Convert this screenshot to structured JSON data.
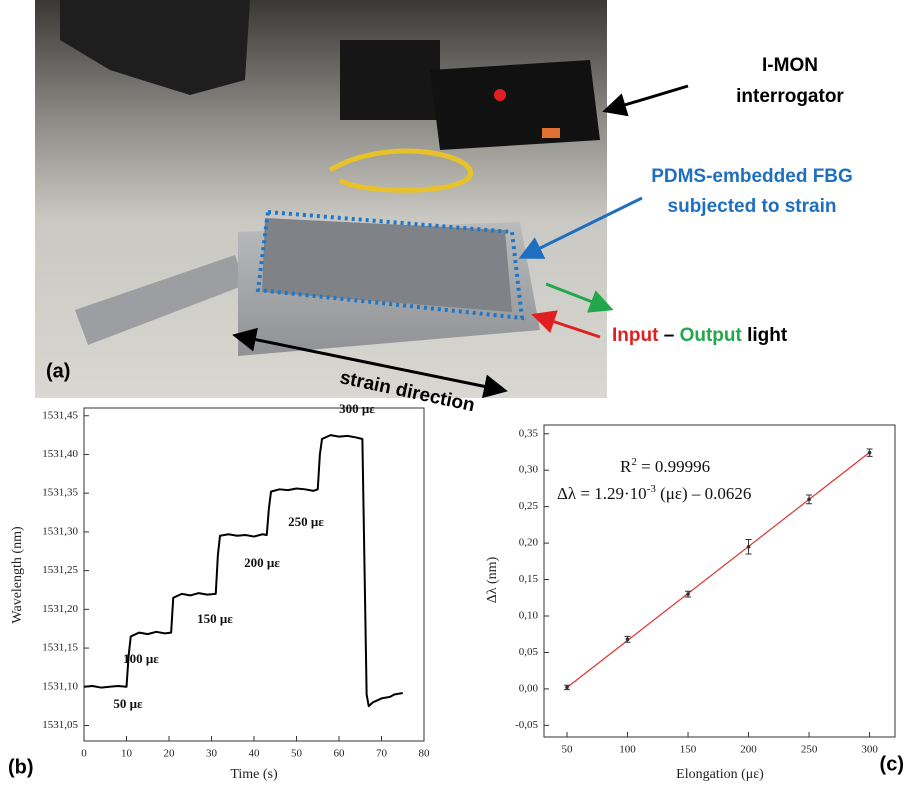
{
  "photo": {
    "panel_label": "(a)",
    "interrogator_label": [
      "I-MON",
      "interrogator"
    ],
    "fbg_label": [
      "PDMS-embedded FBG",
      "subjected to strain"
    ],
    "light_label": {
      "input": "Input",
      "dash": "–",
      "output": "Output",
      "light": "light"
    },
    "strain_direction": "strain direction"
  },
  "chart_data": [
    {
      "type": "line",
      "panel_label": "(b)",
      "x_label": "Time (s)",
      "y_label": "Wavelength (nm)",
      "color": "#000000",
      "x": [
        0,
        2,
        4,
        6,
        8,
        10,
        10.5,
        11,
        13,
        15,
        17,
        19,
        20.5,
        21,
        23,
        25,
        27,
        29,
        31,
        31.5,
        32,
        34,
        36,
        38,
        40,
        42,
        43,
        43.5,
        44,
        46,
        48,
        50,
        52,
        54,
        55,
        55.5,
        56,
        58,
        60,
        62,
        64,
        65.5,
        66.5,
        67,
        68,
        70,
        72,
        73,
        75
      ],
      "values": [
        1531.1,
        1531.101,
        1531.099,
        1531.1,
        1531.101,
        1531.1,
        1531.14,
        1531.165,
        1531.17,
        1531.168,
        1531.171,
        1531.169,
        1531.17,
        1531.215,
        1531.22,
        1531.218,
        1531.221,
        1531.219,
        1531.22,
        1531.27,
        1531.295,
        1531.297,
        1531.295,
        1531.296,
        1531.294,
        1531.297,
        1531.296,
        1531.33,
        1531.352,
        1531.355,
        1531.354,
        1531.356,
        1531.355,
        1531.353,
        1531.355,
        1531.4,
        1531.42,
        1531.425,
        1531.423,
        1531.424,
        1531.422,
        1531.42,
        1531.09,
        1531.075,
        1531.08,
        1531.085,
        1531.087,
        1531.09,
        1531.092
      ],
      "xlim": [
        0,
        80
      ],
      "xticks": [
        0,
        10,
        20,
        30,
        40,
        50,
        60,
        70,
        80
      ],
      "ylim": [
        1531.03,
        1531.46
      ],
      "yticks": [
        {
          "value": 1531.05,
          "label": "1531,05"
        },
        {
          "value": 1531.1,
          "label": "1531,10"
        },
        {
          "value": 1531.15,
          "label": "1531,15"
        },
        {
          "value": 1531.2,
          "label": "1531,20"
        },
        {
          "value": 1531.25,
          "label": "1531,25"
        },
        {
          "value": 1531.3,
          "label": "1531,30"
        },
        {
          "value": 1531.35,
          "label": "1531,35"
        },
        {
          "value": 1531.4,
          "label": "1531,40"
        },
        {
          "value": 1531.45,
          "label": "1531,45"
        }
      ],
      "annotations": [
        "50 με",
        "100 με",
        "150 με",
        "200 με",
        "250 με",
        "300 με"
      ]
    },
    {
      "type": "scatter",
      "panel_label": "(c)",
      "x_label": "Elongation (με)",
      "y_label": "Δλ (nm)",
      "color": "#333333",
      "x": [
        50,
        100,
        150,
        200,
        250,
        300
      ],
      "values": [
        0.002,
        0.068,
        0.13,
        0.195,
        0.26,
        0.324
      ],
      "errors": [
        0.003,
        0.004,
        0.004,
        0.01,
        0.006,
        0.005
      ],
      "fit": {
        "x": [
          50,
          300
        ],
        "values": [
          0.0019,
          0.3244
        ],
        "color": "#e03030"
      },
      "xlim": [
        31,
        321
      ],
      "xticks": [
        50,
        100,
        150,
        200,
        250,
        300
      ],
      "ylim": [
        -0.066,
        0.362
      ],
      "yticks": [
        {
          "value": -0.05,
          "label": "-0,05"
        },
        {
          "value": 0,
          "label": "0,00"
        },
        {
          "value": 0.05,
          "label": "0,05"
        },
        {
          "value": 0.1,
          "label": "0,10"
        },
        {
          "value": 0.15,
          "label": "0,15"
        },
        {
          "value": 0.2,
          "label": "0,20"
        },
        {
          "value": 0.25,
          "label": "0,25"
        },
        {
          "value": 0.3,
          "label": "0,30"
        },
        {
          "value": 0.35,
          "label": "0,35"
        }
      ],
      "r2": {
        "symbol": "R",
        "sup": "2",
        "text": " = 0.99996"
      },
      "equation": {
        "text": "Δλ = 1.29·10",
        "sup": "-3",
        "rest": " (με) – 0.0626"
      }
    }
  ]
}
